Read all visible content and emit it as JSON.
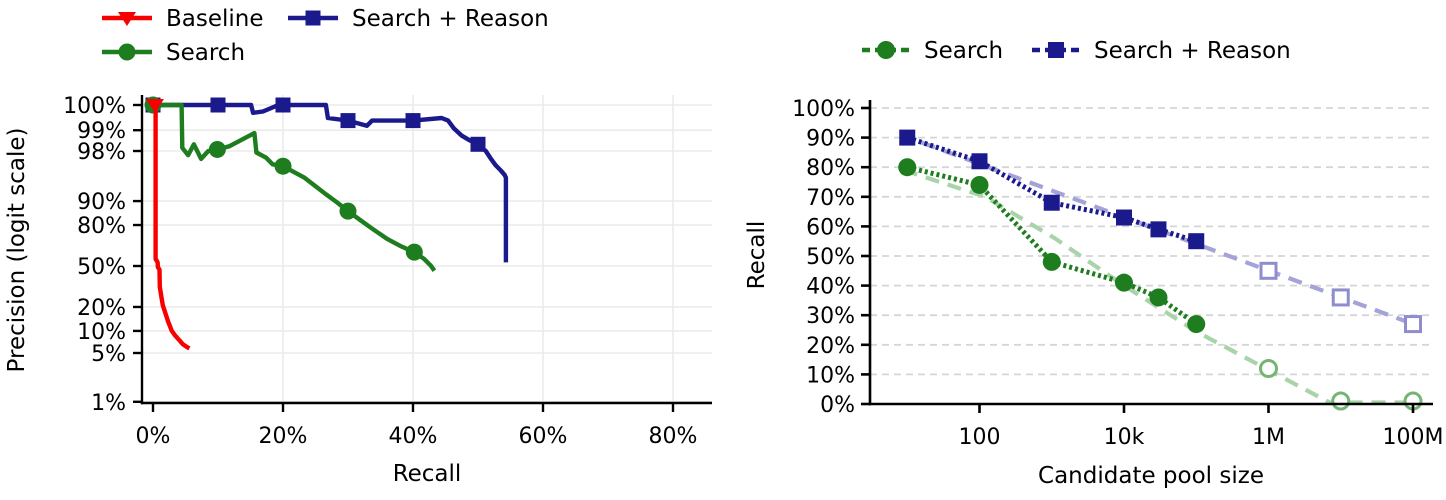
{
  "chart_data": [
    {
      "type": "line",
      "title": "",
      "xlabel": "Recall",
      "ylabel": "Precision (logit scale)",
      "x_scale": "linear",
      "y_scale": "logit",
      "xlim_pct": [
        -2,
        86
      ],
      "x_ticks": [
        0,
        20,
        40,
        60,
        80
      ],
      "x_tick_labels": [
        "0%",
        "20%",
        "40%",
        "60%",
        "80%"
      ],
      "y_ticks": [
        100,
        99,
        98,
        90,
        80,
        50,
        20,
        10,
        5,
        1
      ],
      "y_tick_labels": [
        "100%",
        "99%",
        "98%",
        "90%",
        "80%",
        "50%",
        "20%",
        "10%",
        "5%",
        "1%"
      ],
      "grid": "solid-light",
      "legend_position": "top-left, two rows, no frame",
      "series": [
        {
          "name": "Search + Reason",
          "color": "#1a1a8c",
          "marker": "square",
          "points": [
            [
              0,
              100
            ],
            [
              15.1,
              100
            ],
            [
              15.4,
              99.7
            ],
            [
              16.9,
              99.75
            ],
            [
              19.3,
              100
            ],
            [
              26.6,
              100
            ],
            [
              26.9,
              99.5
            ],
            [
              30,
              99.4
            ],
            [
              32.9,
              99.2
            ],
            [
              33.7,
              99.4
            ],
            [
              40,
              99.4
            ],
            [
              44.4,
              99.5
            ],
            [
              45.4,
              99.4
            ],
            [
              46.3,
              99.1
            ],
            [
              47.5,
              98.8
            ],
            [
              48.7,
              98.6
            ],
            [
              50,
              98.4
            ],
            [
              51.2,
              98.0
            ],
            [
              52.0,
              97.4
            ],
            [
              52.7,
              96.8
            ],
            [
              53.5,
              96.2
            ],
            [
              54.1,
              95.6
            ],
            [
              54.3,
              95.2
            ],
            [
              54.3,
              53
            ]
          ],
          "marker_points": [
            [
              0,
              100
            ],
            [
              10,
              100
            ],
            [
              20,
              100
            ],
            [
              30,
              99.4
            ],
            [
              40,
              99.4
            ],
            [
              50,
              98.4
            ]
          ]
        },
        {
          "name": "Search",
          "color": "#1e7d1e",
          "marker": "circle",
          "points": [
            [
              0,
              100
            ],
            [
              4.4,
              100
            ],
            [
              4.5,
              98.2
            ],
            [
              5.4,
              97.7
            ],
            [
              6.3,
              98.4
            ],
            [
              7.4,
              97.4
            ],
            [
              8.5,
              98.0
            ],
            [
              9.9,
              98.1
            ],
            [
              11.8,
              98.3
            ],
            [
              15.6,
              98.9
            ],
            [
              15.9,
              97.9
            ],
            [
              17.4,
              97.5
            ],
            [
              18.4,
              96.9
            ],
            [
              20,
              96.7
            ],
            [
              21.7,
              96.0
            ],
            [
              23.3,
              95.2
            ],
            [
              24.9,
              93.8
            ],
            [
              26.5,
              92.0
            ],
            [
              28.3,
              89.6
            ],
            [
              30,
              86.5
            ],
            [
              31.9,
              82.5
            ],
            [
              33.9,
              77.5
            ],
            [
              36.0,
              71.5
            ],
            [
              38.2,
              66
            ],
            [
              40.2,
              61.5
            ],
            [
              41.7,
              56
            ],
            [
              42.7,
              50.5
            ],
            [
              43.3,
              46
            ]
          ],
          "marker_points": [
            [
              0,
              100
            ],
            [
              9.9,
              98.1
            ],
            [
              20,
              96.7
            ],
            [
              30,
              86.5
            ],
            [
              40.2,
              61.5
            ]
          ]
        },
        {
          "name": "Baseline",
          "color": "#f80000",
          "marker": "triangle-down",
          "points": [
            [
              0.15,
              100
            ],
            [
              0.4,
              100
            ],
            [
              0.4,
              56
            ],
            [
              0.7,
              53
            ],
            [
              0.75,
              49
            ],
            [
              1.0,
              47
            ],
            [
              1.05,
              33
            ],
            [
              1.3,
              26
            ],
            [
              1.5,
              21
            ],
            [
              1.9,
              17
            ],
            [
              2.3,
              13.5
            ],
            [
              2.9,
              10
            ],
            [
              3.4,
              8.7
            ],
            [
              4.0,
              7.6
            ],
            [
              4.6,
              6.6
            ],
            [
              5.3,
              6.0
            ],
            [
              5.6,
              5.8
            ]
          ],
          "marker_points": [
            [
              0.3,
              100
            ]
          ]
        }
      ]
    },
    {
      "type": "line",
      "title": "",
      "xlabel": "Candidate pool size",
      "ylabel": "Recall",
      "x_scale": "log",
      "y_scale": "linear",
      "ylim_pct": [
        0,
        100
      ],
      "x_ticks": [
        100,
        10000,
        1000000,
        100000000
      ],
      "x_tick_labels": [
        "100",
        "10k",
        "1M",
        "100M"
      ],
      "y_ticks": [
        100,
        90,
        80,
        70,
        60,
        50,
        40,
        30,
        20,
        10,
        0
      ],
      "y_tick_labels": [
        "100%",
        "90%",
        "80%",
        "70%",
        "60%",
        "50%",
        "40%",
        "30%",
        "20%",
        "10%",
        "0%"
      ],
      "grid": "dashed-horizontal",
      "legend_position": "top, single row, no frame",
      "series": [
        {
          "name": "Search",
          "color": "#1e7d1e",
          "marker": "circle",
          "solid_points": [
            [
              10,
              80
            ],
            [
              100,
              74
            ],
            [
              1000,
              48
            ],
            [
              10000,
              41
            ],
            [
              30000,
              36
            ],
            [
              100000,
              27
            ]
          ],
          "extrapolated_points": [
            [
              1000000,
              12
            ],
            [
              10000000,
              1
            ],
            [
              100000000,
              1
            ]
          ],
          "trend_color": "#a9d3a9",
          "hollow_stroke": "#74b574",
          "trend_line": [
            [
              9,
              79
            ],
            [
              120,
              70
            ],
            [
              1100,
              56
            ],
            [
              10000,
              40
            ],
            [
              100000,
              24.5
            ],
            [
              1000000,
              11.5
            ],
            [
              7000000,
              0.5
            ],
            [
              100000000,
              0.5
            ]
          ]
        },
        {
          "name": "Search + Reason",
          "color": "#1a1a8c",
          "marker": "square",
          "solid_points": [
            [
              10,
              90
            ],
            [
              100,
              82
            ],
            [
              1000,
              68
            ],
            [
              10000,
              63
            ],
            [
              30000,
              59
            ],
            [
              100000,
              55
            ]
          ],
          "extrapolated_points": [
            [
              1000000,
              45
            ],
            [
              10000000,
              36
            ],
            [
              100000000,
              27
            ]
          ],
          "trend_color": "#a3a3d8",
          "hollow_stroke": "#8d8dcf",
          "trend_line": [
            [
              8,
              91
            ],
            [
              130000000,
              26
            ]
          ]
        }
      ]
    }
  ]
}
